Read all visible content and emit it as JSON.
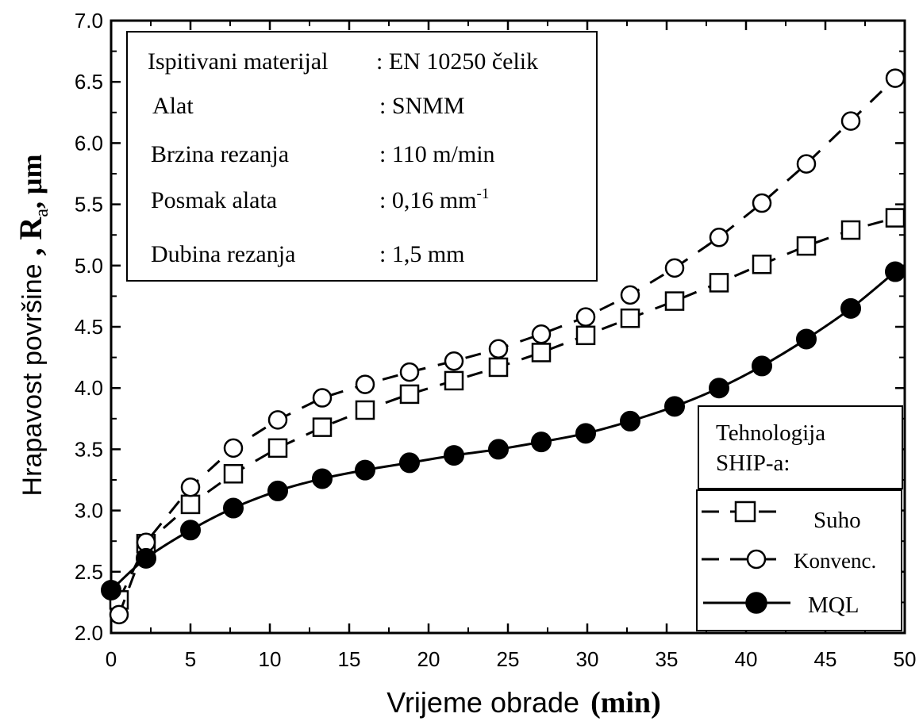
{
  "chart_data": {
    "type": "line",
    "xlabel": "Vrijeme obrade",
    "xlabel_unit": "(min)",
    "ylabel_text": "Hrapavost površine",
    "ylabel_symbol": ", R",
    "ylabel_subscript": "a",
    "ylabel_unit": ", μm",
    "xlim": [
      0,
      50
    ],
    "ylim": [
      2.0,
      7.0
    ],
    "x_ticks": [
      "0",
      "5",
      "10",
      "15",
      "20",
      "25",
      "30",
      "35",
      "40",
      "45",
      "50"
    ],
    "y_ticks": [
      "2.0",
      "2.5",
      "3.0",
      "3.5",
      "4.0",
      "4.5",
      "5.0",
      "5.5",
      "6.0",
      "6.5",
      "7.0"
    ],
    "grid": false,
    "legend_position": "bottom-right",
    "legend_title": [
      "Tehnologija",
      "SHIP-a:"
    ],
    "info_box": [
      {
        "label": "Ispitivani materijal",
        "value": ": EN 10250 čelik"
      },
      {
        "label": "Alat",
        "value": ": SNMM"
      },
      {
        "label": "Brzina rezanja",
        "value": ": 110 m/min"
      },
      {
        "label": "Posmak alata",
        "value": ": 0,16 mm",
        "superscript": "-1"
      },
      {
        "label": "Dubina rezanja",
        "value": ": 1,5 mm"
      }
    ],
    "series": [
      {
        "name": "Suho",
        "marker": "square",
        "line": "dashed",
        "x": [
          0.5,
          2.2,
          5.0,
          7.7,
          10.5,
          13.3,
          16.0,
          18.8,
          21.6,
          24.4,
          27.1,
          29.9,
          32.7,
          35.5,
          38.3,
          41.0,
          43.8,
          46.6,
          49.4
        ],
        "y": [
          2.27,
          2.73,
          3.05,
          3.3,
          3.51,
          3.68,
          3.82,
          3.95,
          4.06,
          4.17,
          4.29,
          4.43,
          4.57,
          4.71,
          4.86,
          5.01,
          5.16,
          5.29,
          5.39
        ]
      },
      {
        "name": "Konvenc.",
        "marker": "circle-open",
        "line": "dashed",
        "x": [
          0.5,
          2.2,
          5.0,
          7.7,
          10.5,
          13.3,
          16.0,
          18.8,
          21.6,
          24.4,
          27.1,
          29.9,
          32.7,
          35.5,
          38.3,
          41.0,
          43.8,
          46.6,
          49.4
        ],
        "y": [
          2.15,
          2.74,
          3.19,
          3.51,
          3.74,
          3.92,
          4.03,
          4.13,
          4.22,
          4.32,
          4.44,
          4.58,
          4.76,
          4.98,
          5.23,
          5.51,
          5.83,
          6.18,
          6.53
        ]
      },
      {
        "name": "MQL",
        "marker": "circle-filled",
        "line": "solid",
        "x": [
          0.0,
          2.2,
          5.0,
          7.7,
          10.5,
          13.3,
          16.0,
          18.8,
          21.6,
          24.4,
          27.1,
          29.9,
          32.7,
          35.5,
          38.3,
          41.0,
          43.8,
          46.6,
          49.4
        ],
        "y": [
          2.35,
          2.61,
          2.84,
          3.02,
          3.16,
          3.26,
          3.33,
          3.39,
          3.45,
          3.5,
          3.56,
          3.63,
          3.73,
          3.85,
          4.0,
          4.18,
          4.4,
          4.65,
          4.95
        ]
      }
    ]
  }
}
